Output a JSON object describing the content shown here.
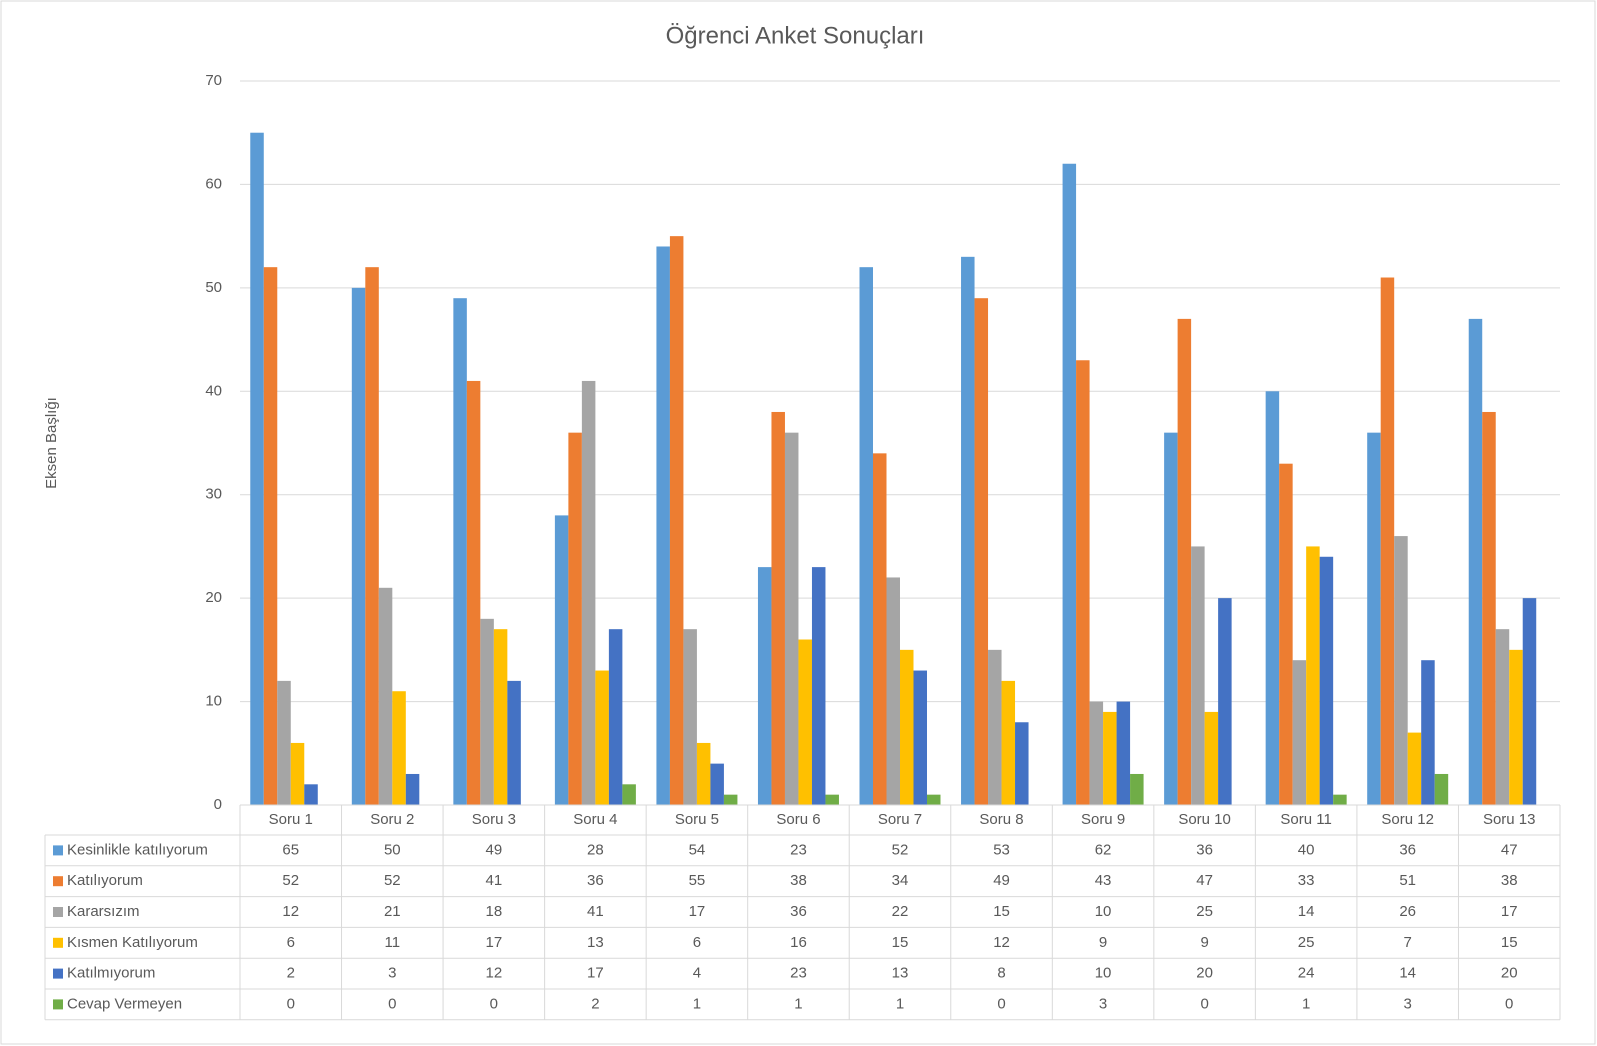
{
  "chart_data": {
    "type": "bar",
    "title": "Öğrenci Anket Sonuçları",
    "y_label": "Eksen Başlığı",
    "categories": [
      "Soru 1",
      "Soru 2",
      "Soru 3",
      "Soru 4",
      "Soru 5",
      "Soru 6",
      "Soru 7",
      "Soru 8",
      "Soru 9",
      "Soru 10",
      "Soru 11",
      "Soru 12",
      "Soru 13"
    ],
    "series": [
      {
        "name": "Kesinlikle katılıyorum",
        "color": "#5b9bd5",
        "values": [
          65,
          50,
          49,
          28,
          54,
          23,
          52,
          53,
          62,
          36,
          40,
          36,
          47
        ]
      },
      {
        "name": "Katılıyorum",
        "color": "#ed7d31",
        "values": [
          52,
          52,
          41,
          36,
          55,
          38,
          34,
          49,
          43,
          47,
          33,
          51,
          38
        ]
      },
      {
        "name": "Kararsızım",
        "color": "#a5a5a5",
        "values": [
          12,
          21,
          18,
          41,
          17,
          36,
          22,
          15,
          10,
          25,
          14,
          26,
          17
        ]
      },
      {
        "name": "Kısmen Katılıyorum",
        "color": "#ffc000",
        "values": [
          6,
          11,
          17,
          13,
          6,
          16,
          15,
          12,
          9,
          9,
          25,
          7,
          15
        ]
      },
      {
        "name": "Katılmıyorum",
        "color": "#4472c4",
        "values": [
          2,
          3,
          12,
          17,
          4,
          23,
          13,
          8,
          10,
          20,
          24,
          14,
          20
        ]
      },
      {
        "name": "Cevap Vermeyen",
        "color": "#70ad47",
        "values": [
          0,
          0,
          0,
          2,
          1,
          1,
          1,
          0,
          3,
          0,
          1,
          3,
          0
        ]
      }
    ],
    "ylim": [
      0,
      70
    ],
    "yticks": [
      0,
      10,
      20,
      30,
      40,
      50,
      60,
      70
    ],
    "grid": true,
    "data_table": true
  }
}
